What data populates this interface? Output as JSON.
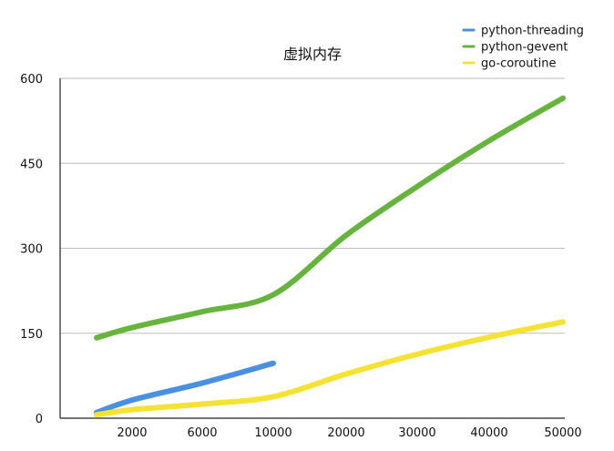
{
  "chart_data": {
    "type": "line",
    "title": "虚拟内存",
    "xlabel": "",
    "ylabel": "",
    "categories": [
      "",
      "2000",
      "6000",
      "10000",
      "20000",
      "30000",
      "40000",
      "50000"
    ],
    "ylim": [
      0,
      600
    ],
    "yticks": [
      "0",
      "150",
      "300",
      "450",
      "600"
    ],
    "grid": true,
    "legend_position": "top-right",
    "series": [
      {
        "name": "python-threading",
        "color": "#4A90E2",
        "values": [
          10,
          32,
          62,
          97,
          null,
          null,
          null,
          null
        ]
      },
      {
        "name": "python-gevent",
        "color": "#65B43B",
        "values": [
          142,
          160,
          188,
          218,
          323,
          409,
          490,
          565
        ]
      },
      {
        "name": "go-coroutine",
        "color": "#F5E232",
        "values": [
          6,
          15,
          25,
          38,
          78,
          113,
          143,
          170
        ]
      }
    ]
  }
}
